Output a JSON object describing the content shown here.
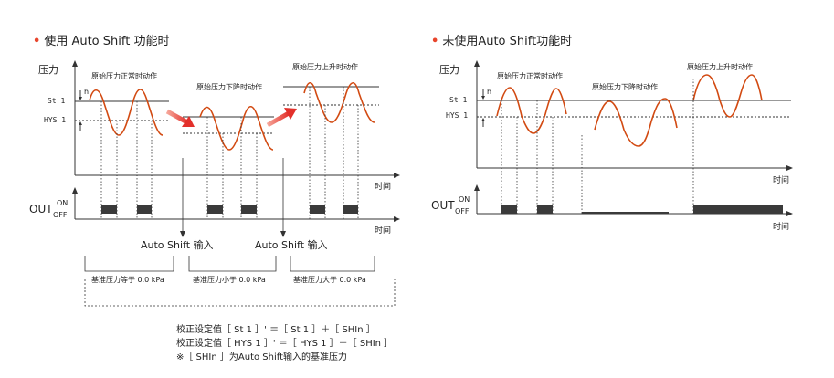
{
  "left_panel": {
    "title": "使用 Auto Shift 功能时",
    "y_axis": "压力",
    "x_axis_top": "时间",
    "x_axis_bottom": "时间",
    "setpoint_label": "St 1",
    "hysteresis_label": "HYS 1",
    "h_label": "h",
    "phase_normal": "原始压力正常时动作",
    "phase_drop": "原始压力下降时动作",
    "phase_rise": "原始压力上升时动作",
    "out_label": "OUT",
    "on_label": "ON",
    "off_label": "OFF",
    "auto_shift_input_1": "Auto Shift 输入",
    "auto_shift_input_2": "Auto Shift 输入",
    "bracket_1": "基准压力等于 0.0 kPa",
    "bracket_2": "基准压力小于 0.0 kPa",
    "bracket_3": "基准压力大于 0.0 kPa",
    "formula_1": "校正设定值［ St 1 ］' ＝［ St 1 ］＋［ SHIn ］",
    "formula_2": "校正设定值［ HYS 1 ］' ＝［ HYS 1 ］＋［ SHIn ］",
    "note": "※［ SHIn ］为Auto Shift输入的基准压力"
  },
  "right_panel": {
    "title": "未使用Auto Shift功能时",
    "y_axis": "压力",
    "x_axis_top": "时间",
    "x_axis_bottom": "时间",
    "setpoint_label": "St 1",
    "hysteresis_label": "HYS 1",
    "h_label": "h",
    "phase_normal": "原始压力正常时动作",
    "phase_drop": "原始压力下降时动作",
    "phase_rise": "原始压力上升时动作",
    "out_label": "OUT",
    "on_label": "ON",
    "off_label": "OFF"
  },
  "colors": {
    "wave": "#d24a12",
    "axis": "#333333",
    "out_on": "#3a3a3a",
    "arrow": "#e3302b",
    "bullet": "#e8452c"
  }
}
